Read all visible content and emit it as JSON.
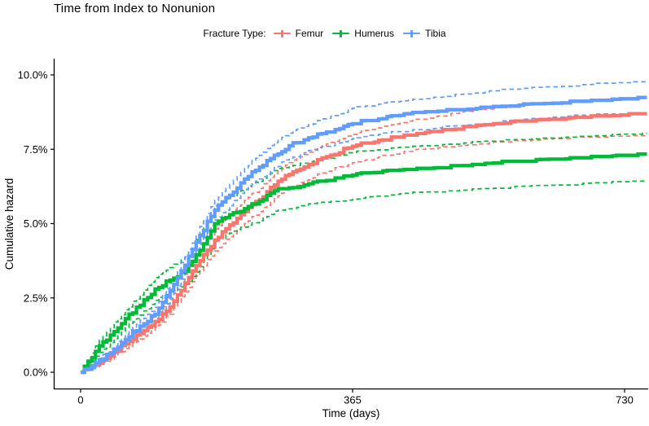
{
  "title": "Time from Index to Nonunion",
  "axes": {
    "y_title": "Cumulative hazard",
    "x_title": "Time (days)"
  },
  "legend": {
    "label": "Fracture Type:",
    "items": [
      {
        "name": "Femur",
        "color": "#F8766D"
      },
      {
        "name": "Humerus",
        "color": "#00BA38"
      },
      {
        "name": "Tibia",
        "color": "#619CFF"
      }
    ]
  },
  "chart_data": {
    "type": "line",
    "subtype": "cumulative-hazard-step-curves-with-dashed-95pct-CI",
    "title": "Time from Index to Nonunion",
    "xlabel": "Time (days)",
    "ylabel": "Cumulative hazard",
    "legend_position": "top-center",
    "grid": false,
    "xlim": [
      0,
      760
    ],
    "ylim_pct": [
      0,
      10.5
    ],
    "x_ticks": [
      {
        "label": "0",
        "value": 0
      },
      {
        "label": "365",
        "value": 365
      },
      {
        "label": "730",
        "value": 730
      }
    ],
    "y_ticks": [
      {
        "label": "0.0%",
        "value": 0
      },
      {
        "label": "2.5%",
        "value": 2.5
      },
      {
        "label": "5.0%",
        "value": 5
      },
      {
        "label": "7.5%",
        "value": 7.5
      },
      {
        "label": "10.0%",
        "value": 10
      }
    ],
    "x_days": [
      0,
      20,
      40,
      60,
      80,
      100,
      120,
      140,
      160,
      180,
      200,
      220,
      240,
      260,
      280,
      300,
      330,
      365,
      400,
      440,
      480,
      520,
      560,
      600,
      640,
      680,
      730,
      760
    ],
    "series": [
      {
        "name": "Femur",
        "color": "#F8766D",
        "est": [
          0,
          0.25,
          0.55,
          0.95,
          1.3,
          1.7,
          2.2,
          3.0,
          3.75,
          4.45,
          4.95,
          5.4,
          5.8,
          6.3,
          6.65,
          6.9,
          7.25,
          7.6,
          7.8,
          7.95,
          8.1,
          8.25,
          8.35,
          8.45,
          8.5,
          8.57,
          8.63,
          8.65
        ],
        "upper": [
          0,
          0.32,
          0.68,
          1.12,
          1.5,
          1.92,
          2.45,
          3.3,
          4.1,
          4.82,
          5.32,
          5.78,
          6.18,
          6.68,
          7.05,
          7.32,
          7.68,
          8.0,
          8.22,
          8.45,
          8.62,
          8.77,
          8.88,
          8.98,
          9.06,
          9.14,
          9.2,
          9.22
        ],
        "lower": [
          0,
          0.18,
          0.44,
          0.8,
          1.12,
          1.5,
          1.95,
          2.7,
          3.42,
          4.08,
          4.56,
          5.0,
          5.4,
          5.88,
          6.2,
          6.45,
          6.76,
          7.05,
          7.24,
          7.42,
          7.55,
          7.65,
          7.72,
          7.78,
          7.84,
          7.88,
          7.9,
          7.9
        ]
      },
      {
        "name": "Humerus",
        "color": "#00BA38",
        "est": [
          0,
          0.7,
          1.25,
          1.8,
          2.25,
          2.8,
          3.1,
          3.4,
          4.1,
          5.0,
          5.3,
          5.5,
          5.75,
          6.1,
          6.2,
          6.3,
          6.45,
          6.63,
          6.72,
          6.8,
          6.88,
          6.95,
          7.02,
          7.08,
          7.13,
          7.2,
          7.28,
          7.28
        ],
        "upper": [
          0,
          0.88,
          1.5,
          2.1,
          2.6,
          3.18,
          3.52,
          3.88,
          4.65,
          5.6,
          5.92,
          6.15,
          6.42,
          6.78,
          6.9,
          7.02,
          7.2,
          7.4,
          7.48,
          7.55,
          7.62,
          7.7,
          7.75,
          7.8,
          7.85,
          7.9,
          8.0,
          8.0
        ],
        "lower": [
          0,
          0.54,
          1.0,
          1.5,
          1.92,
          2.42,
          2.7,
          2.95,
          3.55,
          4.4,
          4.68,
          4.88,
          5.1,
          5.42,
          5.5,
          5.58,
          5.72,
          5.81,
          5.9,
          5.98,
          6.05,
          6.12,
          6.18,
          6.25,
          6.3,
          6.35,
          6.4,
          6.4
        ]
      },
      {
        "name": "Tibia",
        "color": "#619CFF",
        "est": [
          0,
          0.3,
          0.65,
          1.1,
          1.55,
          1.95,
          2.75,
          3.6,
          4.6,
          5.45,
          5.95,
          6.5,
          6.9,
          7.3,
          7.62,
          7.82,
          8.08,
          8.36,
          8.52,
          8.7,
          8.78,
          8.85,
          8.92,
          8.98,
          9.05,
          9.1,
          9.18,
          9.2
        ],
        "upper": [
          0,
          0.38,
          0.78,
          1.28,
          1.75,
          2.18,
          3.0,
          3.88,
          4.9,
          5.78,
          6.32,
          6.88,
          7.3,
          7.72,
          8.04,
          8.27,
          8.54,
          8.88,
          9.02,
          9.15,
          9.25,
          9.35,
          9.45,
          9.52,
          9.6,
          9.66,
          9.72,
          9.73
        ],
        "lower": [
          0,
          0.22,
          0.52,
          0.92,
          1.35,
          1.74,
          2.5,
          3.32,
          4.3,
          5.12,
          5.6,
          6.14,
          6.5,
          6.88,
          7.2,
          7.38,
          7.6,
          7.86,
          8.0,
          8.12,
          8.22,
          8.32,
          8.4,
          8.48,
          8.55,
          8.62,
          8.66,
          8.66
        ]
      }
    ]
  }
}
